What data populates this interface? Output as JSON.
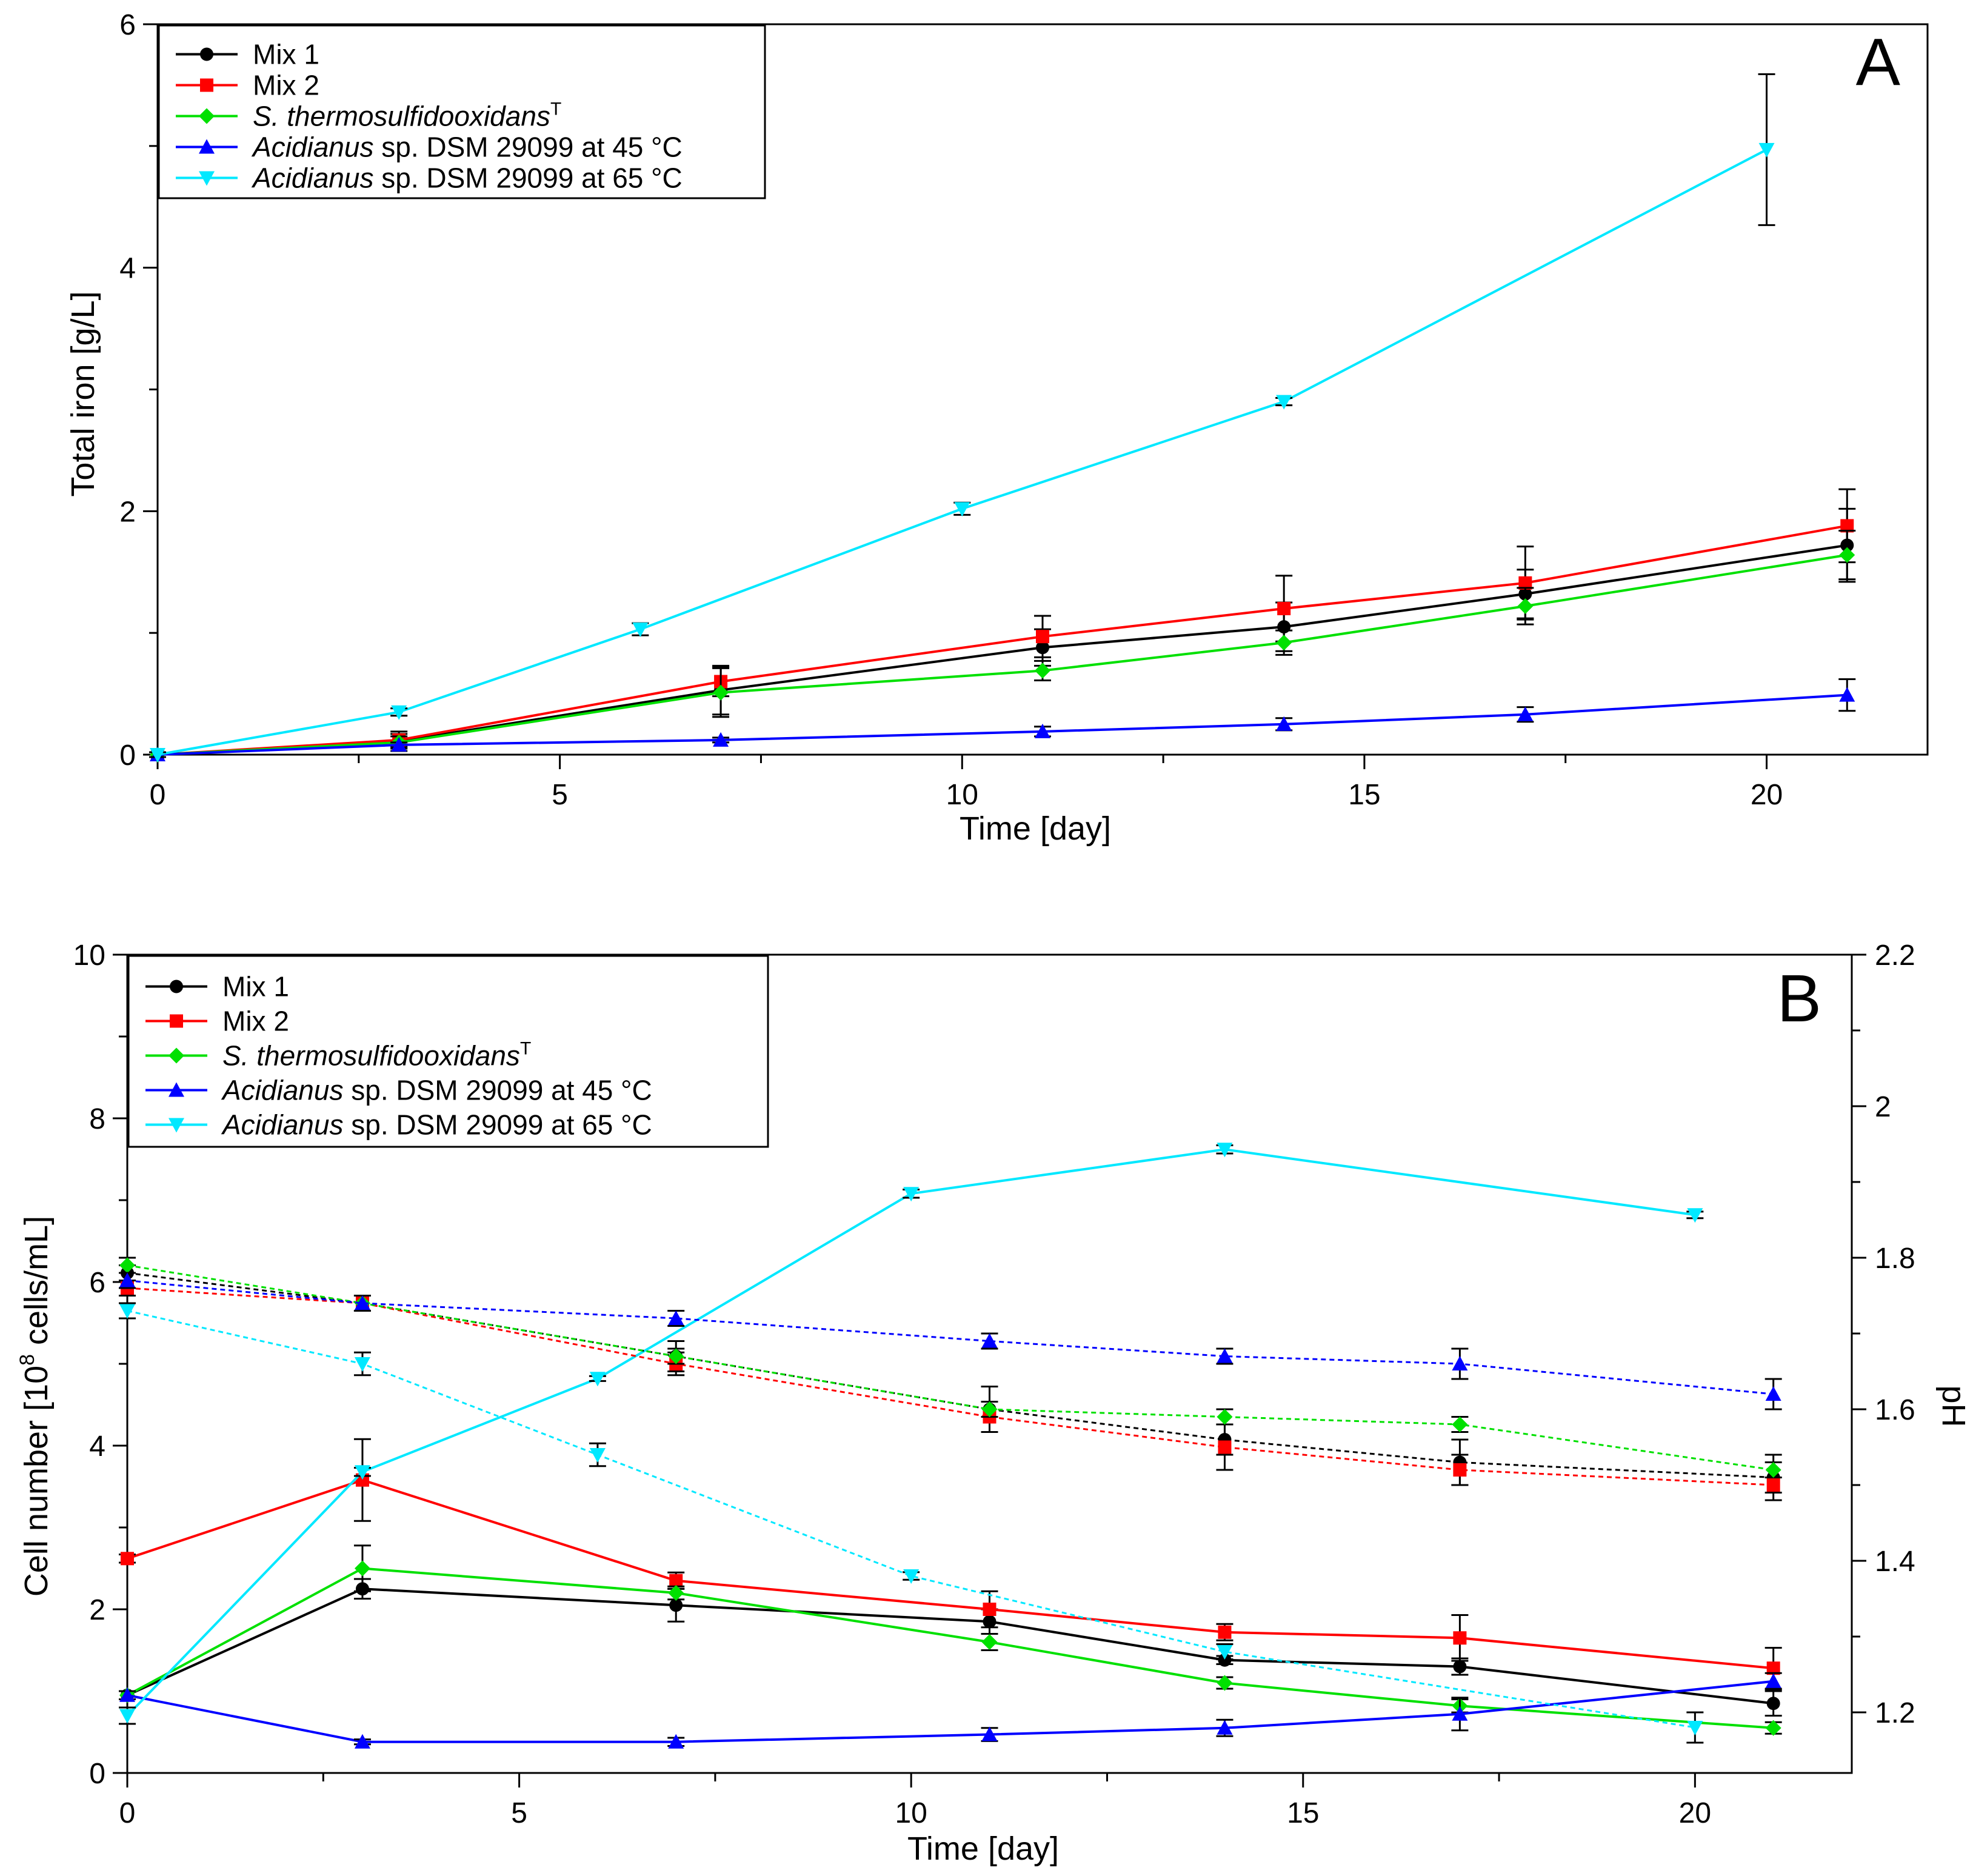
{
  "chart_data": [
    {
      "type": "line",
      "panel_label": "A",
      "xlabel": "Time [day]",
      "ylabel": "Total iron [g/L]",
      "xlim": [
        0,
        22
      ],
      "ylim": [
        0,
        6
      ],
      "x_ticks": [
        0,
        5,
        10,
        15,
        20
      ],
      "y_ticks": [
        0,
        2,
        4,
        6
      ],
      "legend_position": "top-left",
      "series": [
        {
          "key": "mix1",
          "name": "Mix 1",
          "color": "#000000",
          "marker": "circle",
          "dashed": false,
          "x": [
            0,
            3,
            7,
            11,
            14,
            17,
            21
          ],
          "y": [
            0,
            0.11,
            0.53,
            0.88,
            1.05,
            1.32,
            1.72
          ],
          "err": [
            0.02,
            0.08,
            0.2,
            0.15,
            0.2,
            0.2,
            0.3
          ]
        },
        {
          "key": "mix2",
          "name": "Mix 2",
          "color": "#ff0000",
          "marker": "square",
          "dashed": false,
          "x": [
            0,
            3,
            7,
            11,
            14,
            17,
            21
          ],
          "y": [
            0,
            0.12,
            0.6,
            0.97,
            1.2,
            1.41,
            1.88
          ],
          "err": [
            0.02,
            0.05,
            0.12,
            0.17,
            0.27,
            0.3,
            0.3
          ]
        },
        {
          "key": "st",
          "name": "S. thermosulfidooxidans",
          "name_parts": [
            "S. thermosulfidooxidans",
            "T"
          ],
          "color": "#00e000",
          "marker": "diamond",
          "dashed": false,
          "x": [
            0,
            3,
            7,
            11,
            14,
            17,
            21
          ],
          "y": [
            0,
            0.1,
            0.51,
            0.69,
            0.92,
            1.22,
            1.64
          ],
          "err": [
            0.02,
            0.05,
            0.2,
            0.08,
            0.1,
            0.15,
            0.2
          ]
        },
        {
          "key": "ac45",
          "name": "Acidianus sp. DSM 29099 at 45 °C",
          "name_parts": [
            "Acidianus",
            " sp. DSM 29099 at 45 °C"
          ],
          "color": "#0000ff",
          "marker": "triangle-up",
          "dashed": false,
          "x": [
            0,
            3,
            7,
            11,
            14,
            17,
            21
          ],
          "y": [
            0,
            0.08,
            0.12,
            0.19,
            0.25,
            0.33,
            0.49
          ],
          "err": [
            0.02,
            0.02,
            0.02,
            0.04,
            0.05,
            0.06,
            0.13
          ]
        },
        {
          "key": "ac65",
          "name": "Acidianus sp. DSM 29099 at 65 °C",
          "name_parts": [
            "Acidianus",
            " sp. DSM 29099 at 65 °C"
          ],
          "color": "#00e8ff",
          "marker": "triangle-down",
          "dashed": false,
          "x": [
            0,
            3,
            6,
            10,
            14,
            20
          ],
          "y": [
            0,
            0.35,
            1.03,
            2.02,
            2.9,
            4.97
          ],
          "err": [
            0.02,
            0.03,
            0.05,
            0.05,
            0.03,
            0.62
          ]
        }
      ]
    },
    {
      "type": "line",
      "panel_label": "B",
      "xlabel": "Time [day]",
      "ylabel": "Cell number [10⁸ cells/mL]",
      "ylabel_parts": [
        "Cell number [10",
        "8",
        " cells/mL]"
      ],
      "y2label": "pH",
      "xlim": [
        0,
        22
      ],
      "ylim": [
        0,
        10
      ],
      "y2lim": [
        1.12,
        2.2
      ],
      "x_ticks": [
        0,
        5,
        10,
        15,
        20
      ],
      "y_ticks": [
        0,
        2,
        4,
        6,
        8,
        10
      ],
      "y2_ticks": [
        "1.2",
        "1.4",
        "1.6",
        "1.8",
        "2",
        "2.2"
      ],
      "legend_position": "top-left",
      "series": [
        {
          "key": "mix1",
          "name": "Mix 1",
          "color": "#000000",
          "marker": "circle",
          "dashed": false,
          "axis": "left",
          "x": [
            0,
            3,
            7,
            11,
            14,
            17,
            21
          ],
          "y": [
            0.95,
            2.25,
            2.05,
            1.85,
            1.38,
            1.3,
            0.85
          ],
          "err": [
            0.05,
            0.12,
            0.2,
            0.15,
            0.05,
            0.1,
            0.15
          ]
        },
        {
          "key": "mix2",
          "name": "Mix 2",
          "color": "#ff0000",
          "marker": "square",
          "dashed": false,
          "axis": "left",
          "x": [
            0,
            3,
            7,
            11,
            14,
            17,
            21
          ],
          "y": [
            2.62,
            3.58,
            2.35,
            2.0,
            1.72,
            1.65,
            1.28
          ],
          "err": [
            0.05,
            0.5,
            0.1,
            0.22,
            0.1,
            0.28,
            0.25
          ]
        },
        {
          "key": "st",
          "name": "S. thermosulfidooxidans",
          "name_parts": [
            "S. thermosulfidooxidans",
            "T"
          ],
          "color": "#00e000",
          "marker": "diamond",
          "dashed": false,
          "axis": "left",
          "x": [
            0,
            3,
            7,
            11,
            14,
            17,
            21
          ],
          "y": [
            0.95,
            2.5,
            2.2,
            1.6,
            1.1,
            0.82,
            0.55
          ],
          "err": [
            0.05,
            0.28,
            0.08,
            0.1,
            0.07,
            0.08,
            0.07
          ]
        },
        {
          "key": "ac45",
          "name": "Acidianus sp. DSM 29099 at 45 °C",
          "name_parts": [
            "Acidianus",
            " sp. DSM 29099 at 45 °C"
          ],
          "color": "#0000ff",
          "marker": "triangle-up",
          "dashed": false,
          "axis": "left",
          "x": [
            0,
            3,
            7,
            11,
            14,
            17,
            21
          ],
          "y": [
            0.95,
            0.38,
            0.38,
            0.47,
            0.55,
            0.72,
            1.12
          ],
          "err": [
            0.05,
            0.03,
            0.05,
            0.08,
            0.1,
            0.2,
            0.1
          ]
        },
        {
          "key": "ac65",
          "name": "Acidianus sp. DSM 29099 at 65 °C",
          "name_parts": [
            "Acidianus",
            " sp. DSM 29099 at 65 °C"
          ],
          "color": "#00e8ff",
          "marker": "triangle-down",
          "dashed": false,
          "axis": "left",
          "x": [
            0,
            3,
            6,
            10,
            14,
            20
          ],
          "y": [
            0.7,
            3.68,
            4.82,
            7.08,
            7.62,
            6.82
          ],
          "err": [
            0.1,
            0.05,
            0.03,
            0.05,
            0.05,
            0.04
          ]
        },
        {
          "key": "mix1_ph",
          "name": "Mix 1 pH",
          "color": "#000000",
          "marker": "circle",
          "dashed": true,
          "axis": "right",
          "x": [
            0,
            3,
            7,
            11,
            14,
            17,
            21
          ],
          "y": [
            1.78,
            1.74,
            1.67,
            1.6,
            1.56,
            1.53,
            1.51
          ],
          "err": [
            0.01,
            0.01,
            0.02,
            0.03,
            0.02,
            0.03,
            0.03
          ]
        },
        {
          "key": "mix2_ph",
          "name": "Mix 2 pH",
          "color": "#ff0000",
          "marker": "square",
          "dashed": true,
          "axis": "right",
          "x": [
            0,
            3,
            7,
            11,
            14,
            17,
            21
          ],
          "y": [
            1.76,
            1.74,
            1.66,
            1.59,
            1.55,
            1.52,
            1.5
          ],
          "err": [
            0.01,
            0.01,
            0.015,
            0.02,
            0.03,
            0.02,
            0.01
          ]
        },
        {
          "key": "st_ph",
          "name": "S. thermosulfidooxidans pH",
          "color": "#00e000",
          "marker": "diamond",
          "dashed": true,
          "axis": "right",
          "x": [
            0,
            3,
            7,
            11,
            14,
            17,
            21
          ],
          "y": [
            1.79,
            1.74,
            1.67,
            1.6,
            1.59,
            1.58,
            1.52
          ],
          "err": [
            0.01,
            0.01,
            0.01,
            0.01,
            0.01,
            0.01,
            0.01
          ]
        },
        {
          "key": "ac45_ph",
          "name": "Acidianus sp. DSM 29099 at 45 °C pH",
          "color": "#0000ff",
          "marker": "triangle-up",
          "dashed": true,
          "axis": "right",
          "x": [
            0,
            3,
            7,
            11,
            14,
            17,
            21
          ],
          "y": [
            1.77,
            1.74,
            1.72,
            1.69,
            1.67,
            1.66,
            1.62
          ],
          "err": [
            0.01,
            0.01,
            0.01,
            0.01,
            0.01,
            0.02,
            0.02
          ]
        },
        {
          "key": "ac65_ph",
          "name": "Acidianus sp. DSM 29099 at 65 °C pH",
          "color": "#00e8ff",
          "marker": "triangle-down",
          "dashed": true,
          "axis": "right",
          "x": [
            0,
            3,
            6,
            10,
            14,
            20
          ],
          "y": [
            1.73,
            1.66,
            1.54,
            1.38,
            1.28,
            1.18
          ],
          "err": [
            0.01,
            0.015,
            0.015,
            0.005,
            0.01,
            0.02
          ]
        }
      ]
    }
  ]
}
